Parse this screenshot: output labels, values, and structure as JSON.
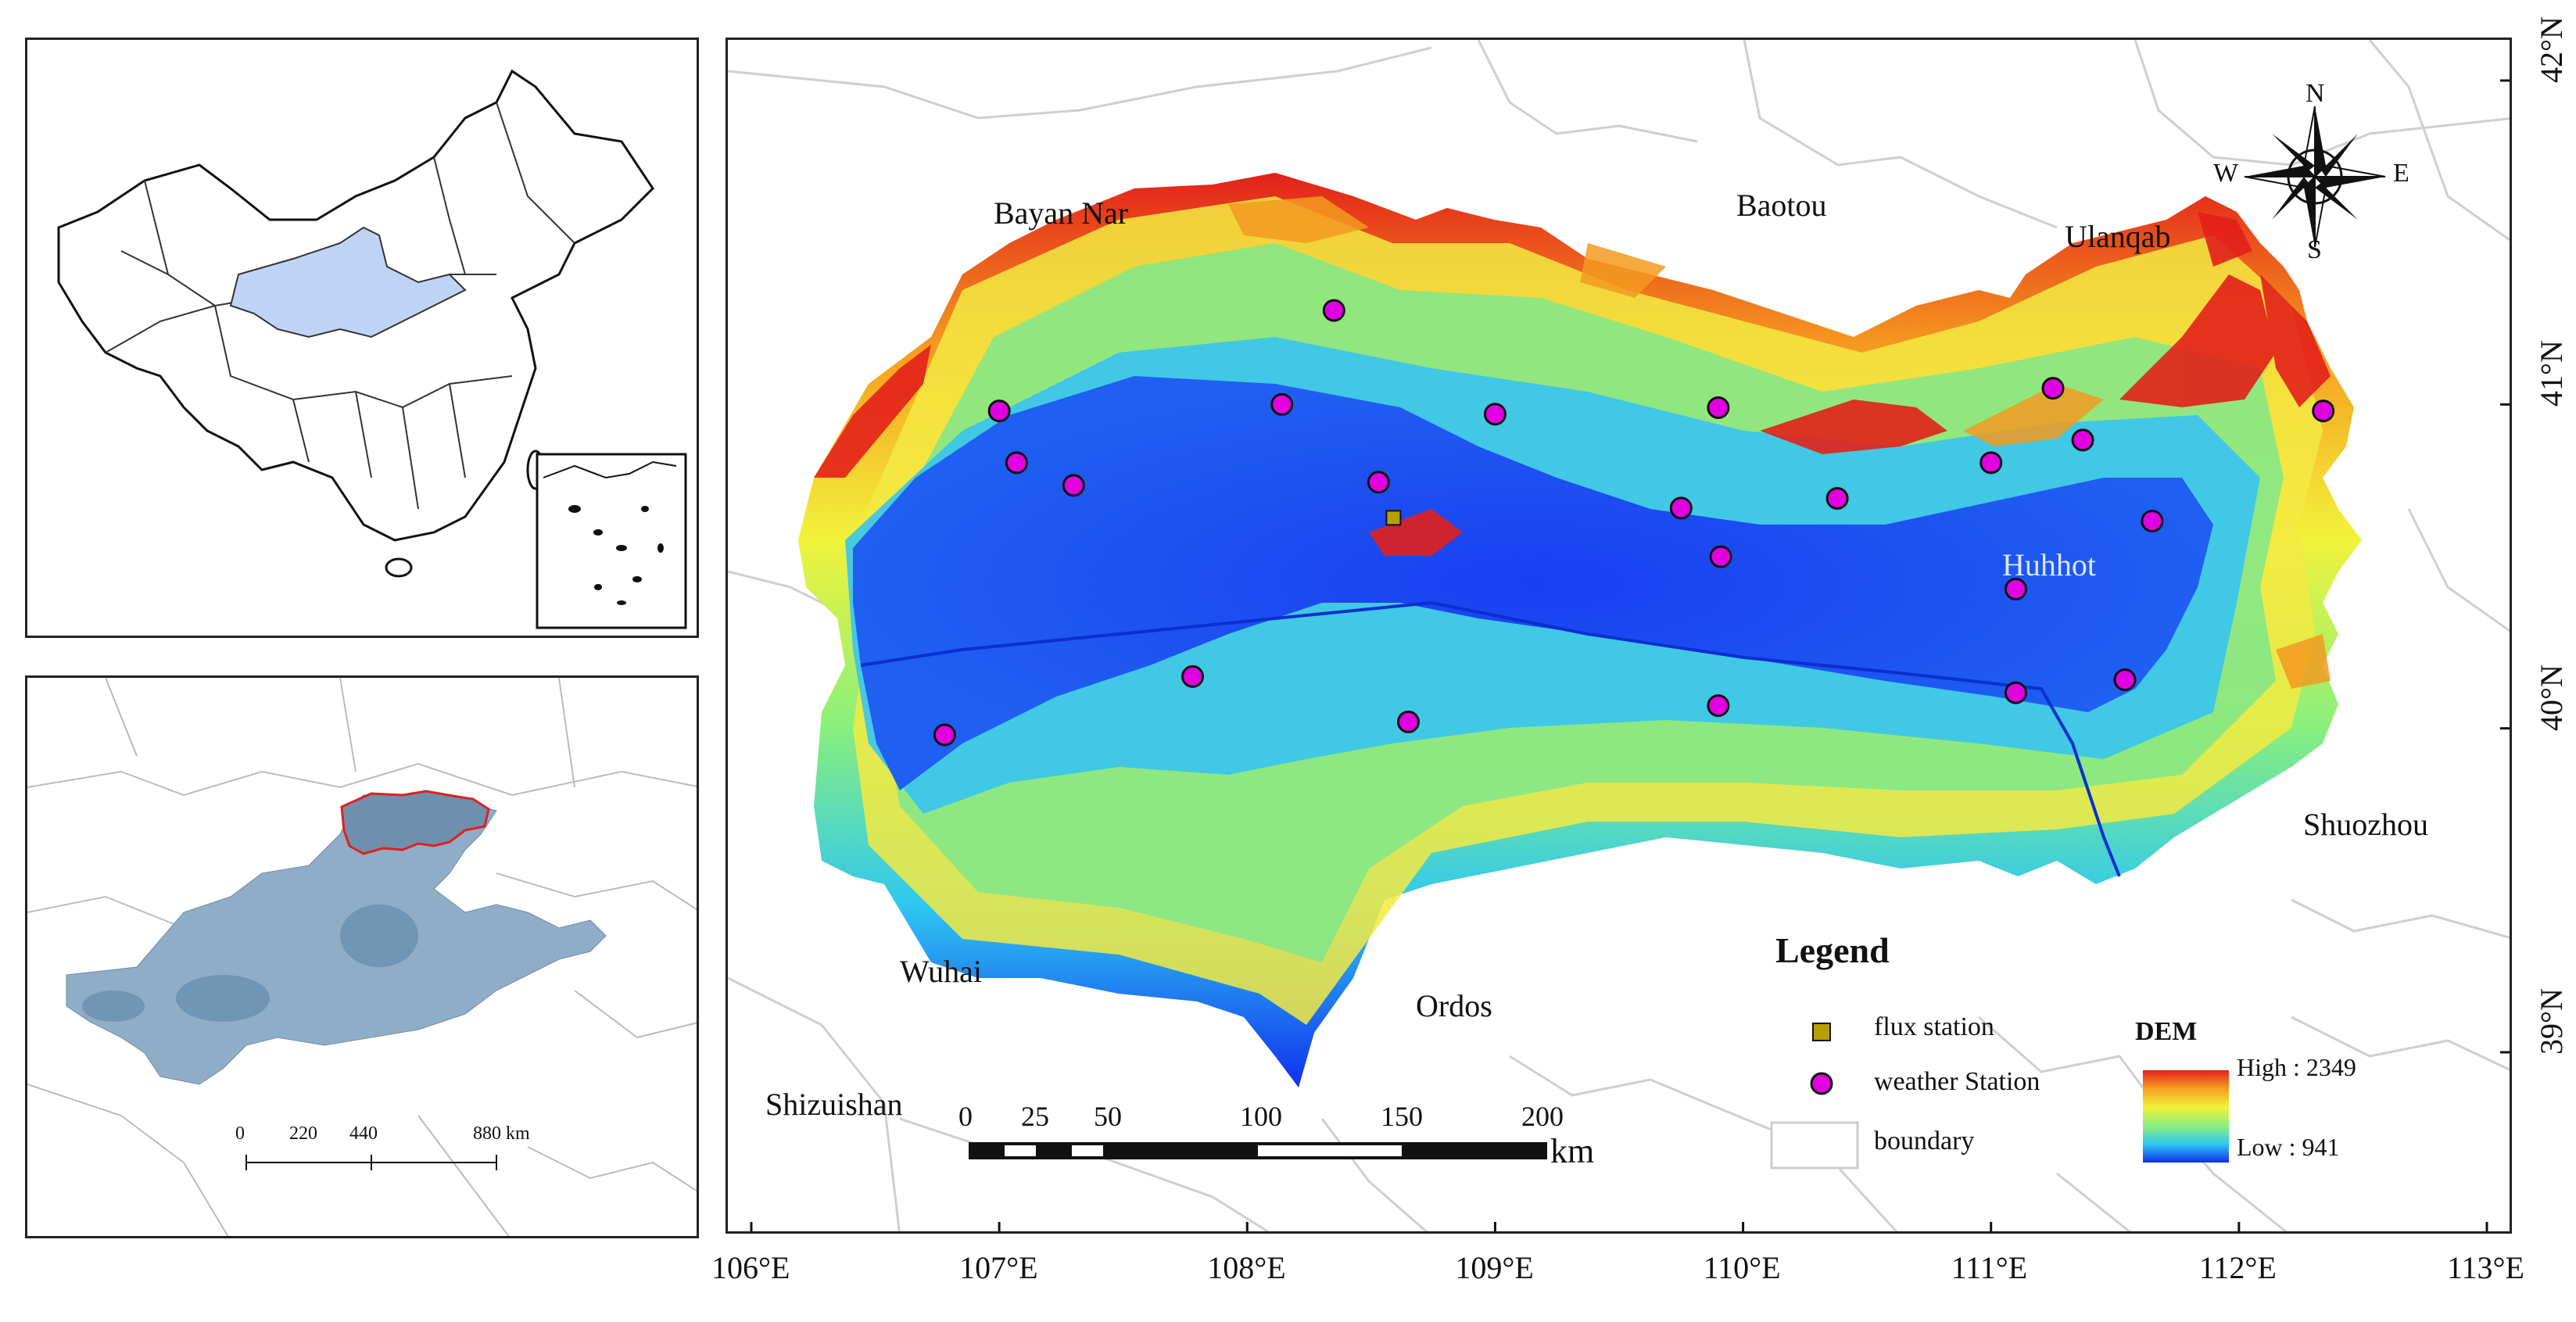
{
  "overview_map": {
    "region_fill": "#bfd4f5"
  },
  "yellow_river_map": {
    "scale_bar": {
      "labels": [
        "0",
        "220",
        "440",
        "880 km"
      ]
    }
  },
  "main_map": {
    "cities": [
      {
        "id": "bayan-nar",
        "name": "Bayan Nar"
      },
      {
        "id": "baotou",
        "name": "Baotou"
      },
      {
        "id": "ulanqab",
        "name": "Ulanqab"
      },
      {
        "id": "huhhot",
        "name": "Huhhot"
      },
      {
        "id": "shuozhou",
        "name": "Shuozhou"
      },
      {
        "id": "wuhai",
        "name": "Wuhai"
      },
      {
        "id": "ordos",
        "name": "Ordos"
      },
      {
        "id": "shizuishan",
        "name": "Shizuishan"
      }
    ],
    "x_ticks": [
      "106°E",
      "107°E",
      "108°E",
      "109°E",
      "110°E",
      "111°E",
      "112°E",
      "113°E"
    ],
    "y_ticks": [
      "42°N",
      "41°N",
      "40°N",
      "39°N"
    ],
    "compass": {
      "n": "N",
      "s": "S",
      "e": "E",
      "w": "W"
    },
    "scale_bar": {
      "labels": [
        "0",
        "25",
        "50",
        "100",
        "150",
        "200"
      ],
      "unit": "km"
    },
    "legend": {
      "title": "Legend",
      "items": [
        {
          "id": "flux",
          "label": "flux station",
          "color": "#b8a000"
        },
        {
          "id": "weather",
          "label": "weather Station",
          "color": "#e000e0"
        },
        {
          "id": "boundary",
          "label": "boundary",
          "color": "#cccccc"
        }
      ],
      "dem": {
        "title": "DEM",
        "high": "High : 2349",
        "low": "Low : 941"
      }
    },
    "weather_stations": [
      {
        "lon": 108.35,
        "lat": 41.29
      },
      {
        "lon": 107.0,
        "lat": 40.98
      },
      {
        "lon": 108.14,
        "lat": 41.0
      },
      {
        "lon": 109.0,
        "lat": 40.97
      },
      {
        "lon": 109.9,
        "lat": 40.99
      },
      {
        "lon": 111.25,
        "lat": 41.05
      },
      {
        "lon": 112.34,
        "lat": 40.98
      },
      {
        "lon": 107.07,
        "lat": 40.82
      },
      {
        "lon": 107.3,
        "lat": 40.75
      },
      {
        "lon": 108.53,
        "lat": 40.76
      },
      {
        "lon": 111.37,
        "lat": 40.89
      },
      {
        "lon": 111.0,
        "lat": 40.82
      },
      {
        "lon": 109.75,
        "lat": 40.68
      },
      {
        "lon": 110.38,
        "lat": 40.71
      },
      {
        "lon": 109.91,
        "lat": 40.53
      },
      {
        "lon": 111.65,
        "lat": 40.64
      },
      {
        "lon": 111.1,
        "lat": 40.43
      },
      {
        "lon": 107.78,
        "lat": 40.16
      },
      {
        "lon": 111.1,
        "lat": 40.11
      },
      {
        "lon": 111.54,
        "lat": 40.15
      },
      {
        "lon": 108.65,
        "lat": 40.02
      },
      {
        "lon": 109.9,
        "lat": 40.07
      },
      {
        "lon": 106.78,
        "lat": 39.98
      }
    ],
    "flux_stations": [
      {
        "lon": 108.59,
        "lat": 40.65
      }
    ]
  }
}
